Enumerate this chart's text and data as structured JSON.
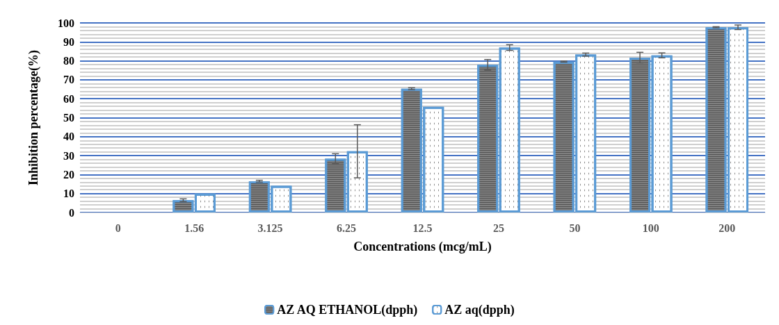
{
  "chart_data": {
    "type": "bar",
    "xlabel": "Concentrations (mcg/mL)",
    "ylabel": "Inhibition percentage(%)",
    "categories": [
      "0",
      "1.56",
      "3.125",
      "6.25",
      "12.5",
      "25",
      "50",
      "100",
      "200"
    ],
    "series": [
      {
        "name": "AZ AQ ETHANOL(dpph)",
        "color": "#7f7f7f",
        "values": [
          null,
          6.5,
          16.5,
          28.4,
          65.3,
          77.9,
          79.6,
          81.7,
          97.7
        ],
        "errors": [
          null,
          0.7,
          0.5,
          2.6,
          0.5,
          2.8,
          0.3,
          2.8,
          0.3
        ]
      },
      {
        "name": "AZ aq(dpph)",
        "color": "#ffffff",
        "values": [
          null,
          10,
          14.1,
          32.3,
          55.8,
          87.0,
          83.3,
          82.9,
          97.7
        ],
        "errors": [
          null,
          null,
          null,
          14,
          null,
          1.5,
          0.8,
          1.3,
          1.2
        ]
      }
    ],
    "ylim": [
      0,
      100
    ],
    "yticks": [
      0,
      10,
      20,
      30,
      40,
      50,
      60,
      70,
      80,
      90,
      100
    ],
    "grid": "y",
    "legend": "bottom"
  }
}
